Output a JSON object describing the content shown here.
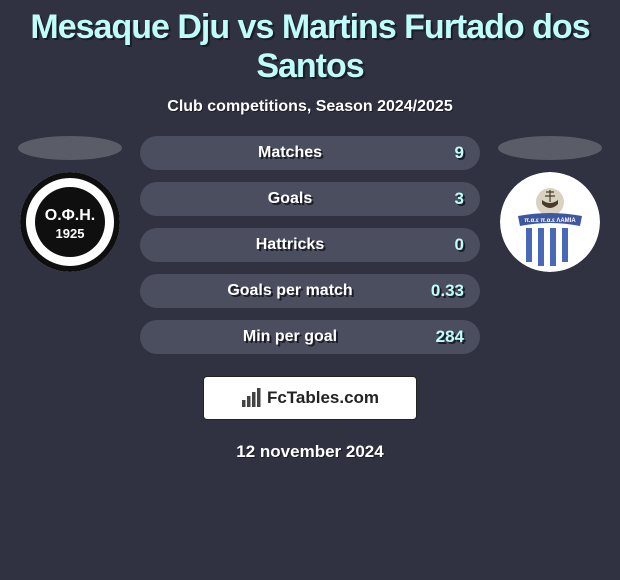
{
  "title": "Mesaque Dju vs Martins Furtado dos Santos",
  "subtitle": "Club competitions, Season 2024/2025",
  "date": "12 november 2024",
  "brand": "FcTables.com",
  "colors": {
    "bg": "#303241",
    "accent": "#befdf9",
    "bar": "#4b4e5e",
    "text": "#ffffff",
    "shadow": "#1b1c26",
    "placeholder": "#5a5c68"
  },
  "left": {
    "placeholder_color": "#5a5c68",
    "crest": {
      "bg": "#ffffff",
      "ring_border": "#0f0f0f",
      "inner_bg": "#0f0f0f",
      "label": "Ο.Φ.Η.",
      "year": "1925",
      "label_color": "#ffffff"
    }
  },
  "right": {
    "placeholder_color": "#5a5c68",
    "crest": {
      "bg": "#ffffff",
      "stripe_color": "#4a68b8",
      "banner_bg": "#3f57a0",
      "banner_text": "π.α.ε π.α.ε ΛΑΜΙΑ",
      "ship_bg": "#d9d2c3"
    }
  },
  "stats": [
    {
      "label": "Matches",
      "value": "9"
    },
    {
      "label": "Goals",
      "value": "3"
    },
    {
      "label": "Hattricks",
      "value": "0"
    },
    {
      "label": "Goals per match",
      "value": "0.33"
    },
    {
      "label": "Min per goal",
      "value": "284"
    }
  ]
}
